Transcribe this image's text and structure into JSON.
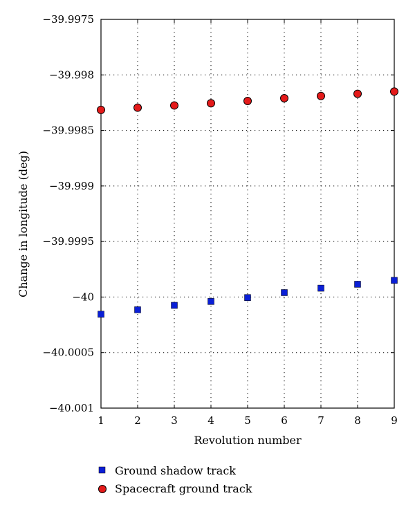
{
  "chart_data": {
    "type": "scatter",
    "title": "",
    "xlabel": "Revolution number",
    "ylabel": "Change in longitude (deg)",
    "xlim": [
      1,
      9
    ],
    "ylim": [
      -40.001,
      -39.9975
    ],
    "x_ticks": [
      1,
      2,
      3,
      4,
      5,
      6,
      7,
      8,
      9
    ],
    "x_tick_labels": [
      "1",
      "2",
      "3",
      "4",
      "5",
      "6",
      "7",
      "8",
      "9"
    ],
    "y_ticks": [
      -39.9975,
      -39.998,
      -39.9985,
      -39.999,
      -39.9995,
      -40,
      -40.0005,
      -40.001
    ],
    "y_tick_labels": [
      "−39.9975",
      "−39.998",
      "−39.9985",
      "−39.999",
      "−39.9995",
      "−40",
      "−40.0005",
      "−40.001"
    ],
    "grid": true,
    "legend_position": "bottom",
    "series": [
      {
        "name": "Ground shadow track",
        "marker": "square",
        "color": "#0a1fd6",
        "x": [
          1,
          2,
          3,
          4,
          5,
          6,
          7,
          8,
          9
        ],
        "values": [
          -40.000155,
          -40.000115,
          -40.000075,
          -40.00004,
          -40.000005,
          -39.99996,
          -39.99992,
          -39.999885,
          -39.99985
        ]
      },
      {
        "name": "Spacecraft ground track",
        "marker": "circle",
        "color": "#e41a1a",
        "x": [
          1,
          2,
          3,
          4,
          5,
          6,
          7,
          8,
          9
        ],
        "values": [
          -39.998315,
          -39.998295,
          -39.998275,
          -39.998255,
          -39.998235,
          -39.99821,
          -39.99819,
          -39.99817,
          -39.99815
        ]
      }
    ]
  }
}
